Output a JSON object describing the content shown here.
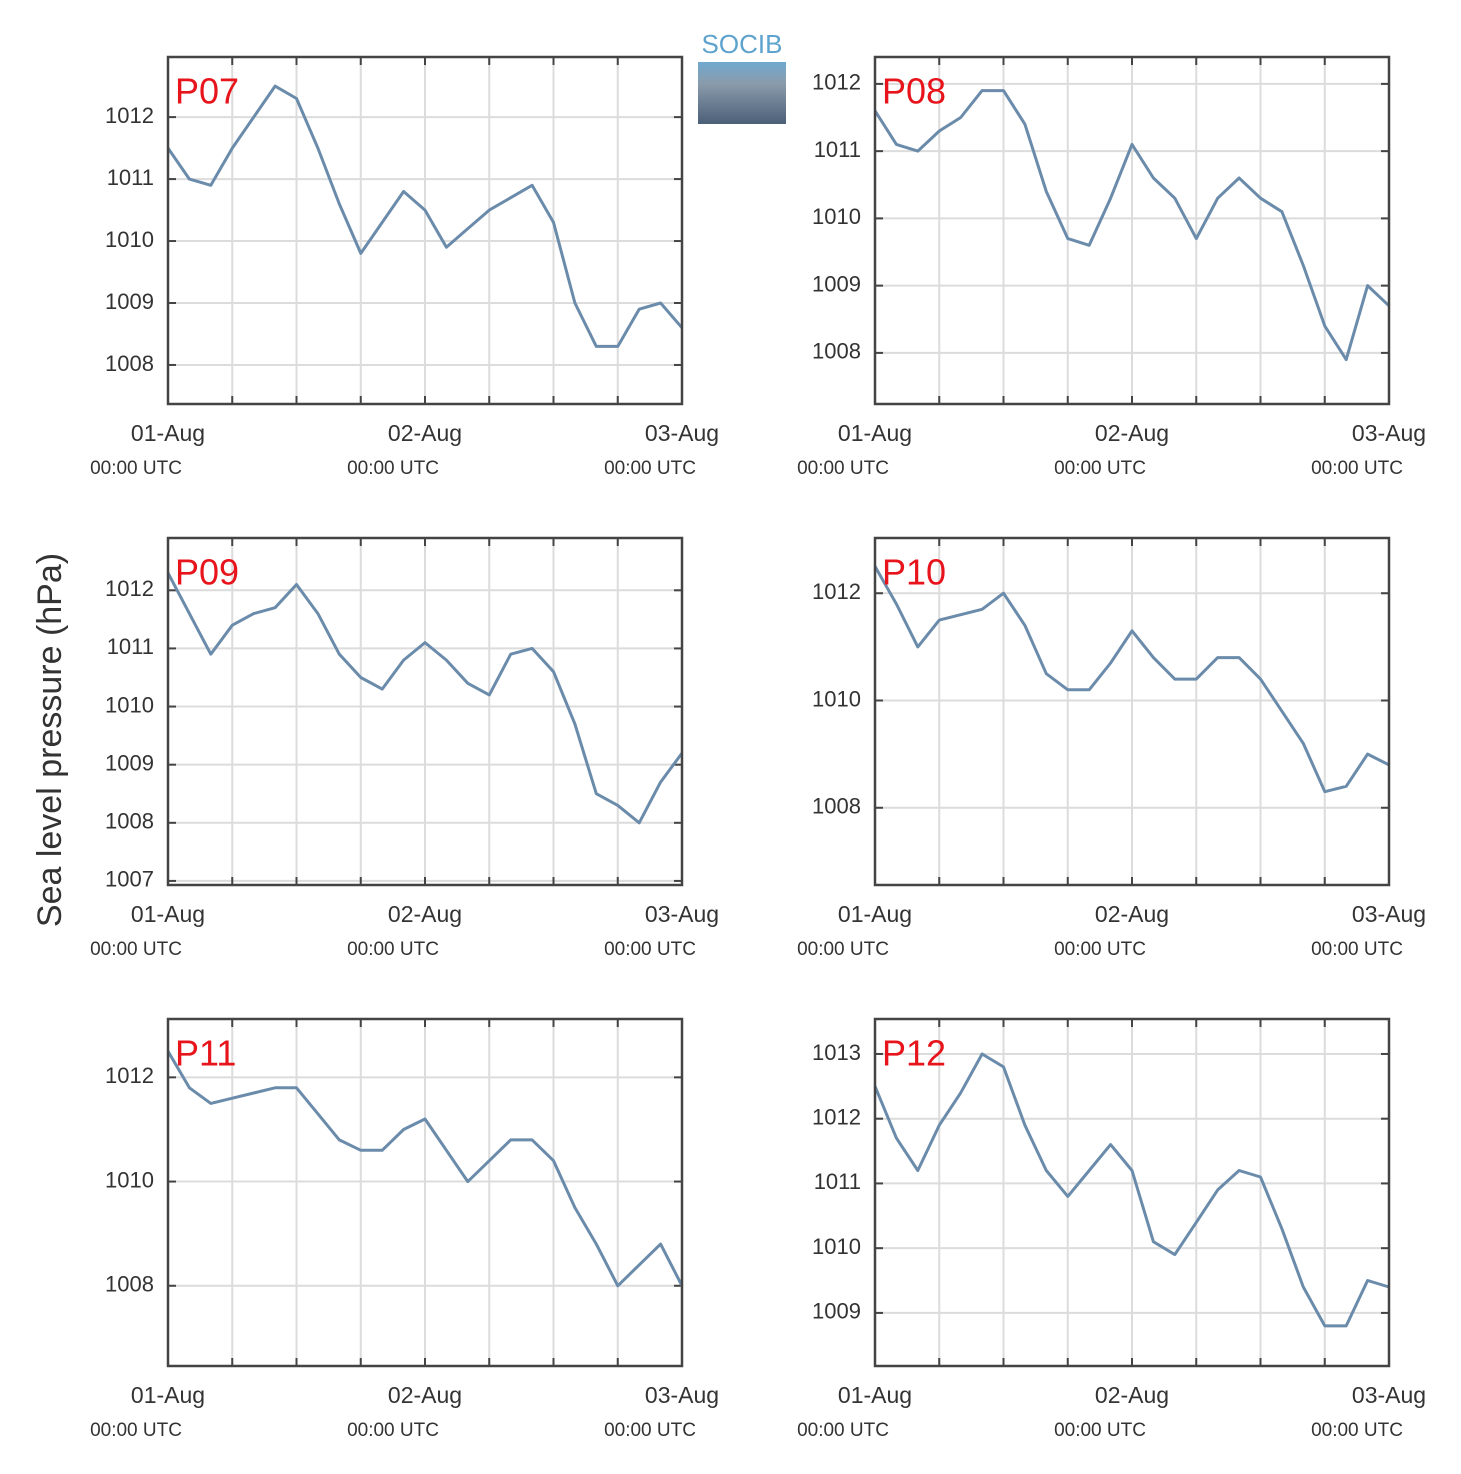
{
  "logo": "SOCIB",
  "ylabel": "Sea level pressure (hPa)",
  "chart_data": [
    {
      "type": "line",
      "title": "P07",
      "color": "#6b8bab",
      "x": [
        0,
        2,
        4,
        6,
        8,
        10,
        12,
        14,
        16,
        18,
        20,
        22,
        24,
        26,
        28,
        30,
        32,
        34,
        36,
        38,
        40,
        42,
        44,
        46,
        48
      ],
      "values": [
        1011.5,
        1011.0,
        1010.9,
        1011.5,
        1012.0,
        1012.5,
        1012.3,
        1011.5,
        1010.6,
        1009.8,
        1010.3,
        1010.8,
        1010.5,
        1009.9,
        1010.2,
        1010.5,
        1010.7,
        1010.9,
        1010.3,
        1009.0,
        1008.3,
        1008.3,
        1008.9,
        1009.0,
        1008.6
      ],
      "xlim": [
        0,
        48
      ],
      "xticks": [
        {
          "value": 0,
          "label": "01-Aug",
          "sublabel": "00:00 UTC"
        },
        {
          "value": 24,
          "label": "02-Aug",
          "sublabel": "00:00 UTC"
        },
        {
          "value": 48,
          "label": "03-Aug",
          "sublabel": "00:00 UTC"
        }
      ],
      "xminor": [
        6,
        12,
        18,
        30,
        36,
        42
      ],
      "ylim": [
        1007.37,
        1012.97
      ],
      "yticks": [
        1008,
        1009,
        1010,
        1011,
        1012
      ],
      "grid": true
    },
    {
      "type": "line",
      "title": "P08",
      "color": "#6b8bab",
      "x": [
        0,
        2,
        4,
        6,
        8,
        10,
        12,
        14,
        16,
        18,
        20,
        22,
        24,
        26,
        28,
        30,
        32,
        34,
        36,
        38,
        40,
        42,
        44,
        46,
        48
      ],
      "values": [
        1011.6,
        1011.1,
        1011.0,
        1011.3,
        1011.5,
        1011.9,
        1011.9,
        1011.4,
        1010.4,
        1009.7,
        1009.6,
        1010.3,
        1011.1,
        1010.6,
        1010.3,
        1009.7,
        1010.3,
        1010.6,
        1010.3,
        1010.1,
        1009.3,
        1008.4,
        1007.9,
        1009.0,
        1008.7
      ],
      "xlim": [
        0,
        48
      ],
      "xticks": [
        {
          "value": 0,
          "label": "01-Aug",
          "sublabel": "00:00 UTC"
        },
        {
          "value": 24,
          "label": "02-Aug",
          "sublabel": "00:00 UTC"
        },
        {
          "value": 48,
          "label": "03-Aug",
          "sublabel": "00:00 UTC"
        }
      ],
      "xminor": [
        6,
        12,
        18,
        30,
        36,
        42
      ],
      "ylim": [
        1007.24,
        1012.4
      ],
      "yticks": [
        1008,
        1009,
        1010,
        1011,
        1012
      ],
      "grid": true
    },
    {
      "type": "line",
      "title": "P09",
      "color": "#6b8bab",
      "x": [
        0,
        2,
        4,
        6,
        8,
        10,
        12,
        14,
        16,
        18,
        20,
        22,
        24,
        26,
        28,
        30,
        32,
        34,
        36,
        38,
        40,
        42,
        44,
        46,
        48
      ],
      "values": [
        1012.3,
        1011.6,
        1010.9,
        1011.4,
        1011.6,
        1011.7,
        1012.1,
        1011.6,
        1010.9,
        1010.5,
        1010.3,
        1010.8,
        1011.1,
        1010.8,
        1010.4,
        1010.2,
        1010.9,
        1011.0,
        1010.6,
        1009.7,
        1008.5,
        1008.3,
        1008.0,
        1008.7,
        1009.2
      ],
      "xlim": [
        0,
        48
      ],
      "xticks": [
        {
          "value": 0,
          "label": "01-Aug",
          "sublabel": "00:00 UTC"
        },
        {
          "value": 24,
          "label": "02-Aug",
          "sublabel": "00:00 UTC"
        },
        {
          "value": 48,
          "label": "03-Aug",
          "sublabel": "00:00 UTC"
        }
      ],
      "xminor": [
        6,
        12,
        18,
        30,
        36,
        42
      ],
      "ylim": [
        1006.93,
        1012.9
      ],
      "yticks": [
        1007,
        1008,
        1009,
        1010,
        1011,
        1012
      ],
      "grid": true
    },
    {
      "type": "line",
      "title": "P10",
      "color": "#6b8bab",
      "x": [
        0,
        2,
        4,
        6,
        8,
        10,
        12,
        14,
        16,
        18,
        20,
        22,
        24,
        26,
        28,
        30,
        32,
        34,
        36,
        38,
        40,
        42,
        44,
        46,
        48
      ],
      "values": [
        1012.5,
        1011.8,
        1011.0,
        1011.5,
        1011.6,
        1011.7,
        1012.0,
        1011.4,
        1010.5,
        1010.2,
        1010.2,
        1010.7,
        1011.3,
        1010.8,
        1010.4,
        1010.4,
        1010.8,
        1010.8,
        1010.4,
        1009.8,
        1009.2,
        1008.3,
        1008.4,
        1009.0,
        1008.8
      ],
      "xlim": [
        0,
        48
      ],
      "xticks": [
        {
          "value": 0,
          "label": "01-Aug",
          "sublabel": "00:00 UTC"
        },
        {
          "value": 24,
          "label": "02-Aug",
          "sublabel": "00:00 UTC"
        },
        {
          "value": 48,
          "label": "03-Aug",
          "sublabel": "00:00 UTC"
        }
      ],
      "xminor": [
        6,
        12,
        18,
        30,
        36,
        42
      ],
      "ylim": [
        1006.56,
        1013.03
      ],
      "yticks": [
        1008,
        1010,
        1012
      ],
      "grid": true
    },
    {
      "type": "line",
      "title": "P11",
      "color": "#6b8bab",
      "x": [
        0,
        2,
        4,
        6,
        8,
        10,
        12,
        14,
        16,
        18,
        20,
        22,
        24,
        26,
        28,
        30,
        32,
        34,
        36,
        38,
        40,
        42,
        44,
        46,
        48
      ],
      "values": [
        1012.5,
        1011.8,
        1011.5,
        1011.6,
        1011.7,
        1011.8,
        1011.8,
        1011.3,
        1010.8,
        1010.6,
        1010.6,
        1011.0,
        1011.2,
        1010.6,
        1010.0,
        1010.4,
        1010.8,
        1010.8,
        1010.4,
        1009.5,
        1008.8,
        1008.0,
        1008.4,
        1008.8,
        1008.0
      ],
      "xlim": [
        0,
        48
      ],
      "xticks": [
        {
          "value": 0,
          "label": "01-Aug",
          "sublabel": "00:00 UTC"
        },
        {
          "value": 24,
          "label": "02-Aug",
          "sublabel": "00:00 UTC"
        },
        {
          "value": 48,
          "label": "03-Aug",
          "sublabel": "00:00 UTC"
        }
      ],
      "xminor": [
        6,
        12,
        18,
        30,
        36,
        42
      ],
      "ylim": [
        1006.46,
        1013.12
      ],
      "yticks": [
        1008,
        1010,
        1012
      ],
      "grid": true
    },
    {
      "type": "line",
      "title": "P12",
      "color": "#6b8bab",
      "x": [
        0,
        2,
        4,
        6,
        8,
        10,
        12,
        14,
        16,
        18,
        20,
        22,
        24,
        26,
        28,
        30,
        32,
        34,
        36,
        38,
        40,
        42,
        44,
        46,
        48
      ],
      "values": [
        1012.5,
        1011.7,
        1011.2,
        1011.9,
        1012.4,
        1013.0,
        1012.8,
        1011.9,
        1011.2,
        1010.8,
        1011.2,
        1011.6,
        1011.2,
        1010.1,
        1009.9,
        1010.4,
        1010.9,
        1011.2,
        1011.1,
        1010.3,
        1009.4,
        1008.8,
        1008.8,
        1009.5,
        1009.4
      ],
      "xlim": [
        0,
        48
      ],
      "xticks": [
        {
          "value": 0,
          "label": "01-Aug",
          "sublabel": "00:00 UTC"
        },
        {
          "value": 24,
          "label": "02-Aug",
          "sublabel": "00:00 UTC"
        },
        {
          "value": 48,
          "label": "03-Aug",
          "sublabel": "00:00 UTC"
        }
      ],
      "xminor": [
        6,
        12,
        18,
        30,
        36,
        42
      ],
      "ylim": [
        1008.18,
        1013.54
      ],
      "yticks": [
        1009,
        1010,
        1011,
        1012,
        1013
      ],
      "grid": true
    }
  ]
}
